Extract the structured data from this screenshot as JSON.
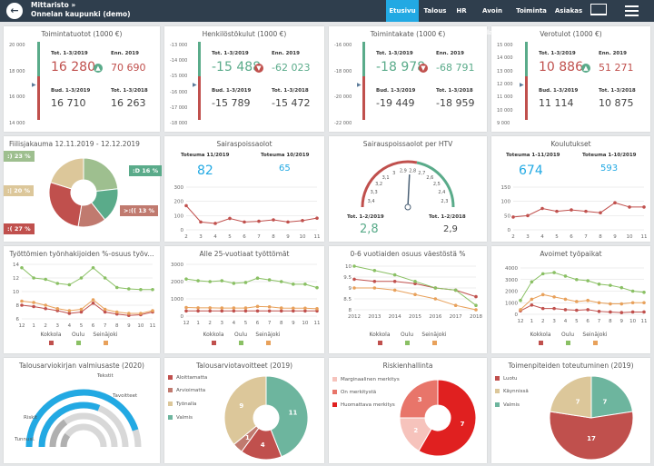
{
  "header": {
    "breadcrumb": "Mittaristo »",
    "title": "Onnelan kaupunki (demo)",
    "tabs": [
      "Etusivu",
      "Talous",
      "HR",
      "Avoin data",
      "Toiminta",
      "Asiakas"
    ],
    "active_tab": "Etusivu"
  },
  "kpis": [
    {
      "title": "Toimintatuotot (1000 €)",
      "axis": [
        "20 000",
        "18 000",
        "16 000",
        "14 000"
      ],
      "tot_label": "Tot. 1-3/2019",
      "tot_value": "16 280",
      "tot_color": "#c0504d",
      "ind": "up",
      "ind_color": "#5aab8a",
      "enn_label": "Enn. 2019",
      "enn_value": "70 690",
      "enn_color": "#c0504d",
      "bud_label": "Bud. 1-3/2019",
      "bud_value": "16 710",
      "prev_label": "Tot. 1-3/2018",
      "prev_value": "16 263"
    },
    {
      "title": "Henkilöstökulut (1000 €)",
      "axis": [
        "-13 000",
        "-14 000",
        "-15 000",
        "-16 000",
        "-17 000",
        "-18 000"
      ],
      "tot_label": "Tot. 1-3/2019",
      "tot_value": "-15 488",
      "tot_color": "#5aab8a",
      "ind": "down",
      "ind_color": "#c0504d",
      "enn_label": "Enn. 2019",
      "enn_value": "-62 023",
      "enn_color": "#5aab8a",
      "bud_label": "Bud. 1-3/2019",
      "bud_value": "-15 789",
      "prev_label": "Tot. 1-3/2018",
      "prev_value": "-15 472"
    },
    {
      "title": "Toimintakate (1000 €)",
      "axis": [
        "-16 000",
        "-18 000",
        "-20 000",
        "-22 000"
      ],
      "tot_label": "Tot. 1-3/2019",
      "tot_value": "-18 978",
      "tot_color": "#5aab8a",
      "ind": "down",
      "ind_color": "#c0504d",
      "enn_label": "Enn. 2019",
      "enn_value": "-68 791",
      "enn_color": "#5aab8a",
      "bud_label": "Bud. 1-3/2019",
      "bud_value": "-19 449",
      "prev_label": "Tot. 1-3/2018",
      "prev_value": "-18 959"
    },
    {
      "title": "Verotulot (1000 €)",
      "axis": [
        "15 000",
        "14 000",
        "13 000",
        "12 000",
        "11 000",
        "10 000",
        "9 000"
      ],
      "tot_label": "Tot. 1-3/2019",
      "tot_value": "10 886",
      "tot_color": "#c0504d",
      "ind": "up",
      "ind_color": "#5aab8a",
      "enn_label": "Enn. 2019",
      "enn_value": "51 271",
      "enn_color": "#c0504d",
      "bud_label": "Bud. 1-3/2019",
      "bud_value": "11 114",
      "prev_label": "Tot. 1-3/2018",
      "prev_value": "10 875"
    }
  ],
  "mood": {
    "title": "Fiilisjakauma 12.11.2019 - 12.12.2019",
    "bubbles": [
      ":) 23 %",
      ":D 16 %",
      ":| 20 %",
      ">:(( 13 %",
      ":( 27 %"
    ],
    "colors": {
      "c1": "#9ebf8f",
      "c2": "#5aab8a",
      "c3": "#dcc79a",
      "c4": "#c07a6f",
      "c5": "#c0504d"
    }
  },
  "sick": {
    "title": "Sairaspoissaolot",
    "l1": "Toteuma 11/2019",
    "v1": "82",
    "l2": "Toteuma 10/2019",
    "v2": "65"
  },
  "htv": {
    "title": "Sairauspoissaolot per HTV",
    "ticks": [
      "3,4",
      "3,3",
      "3,2",
      "3,1",
      "3",
      "2,9",
      "2,8",
      "2,7",
      "2,6",
      "2,5",
      "2,4",
      "2,3"
    ],
    "l1": "Tot. 1-2/2019",
    "v1": "2,8",
    "l2": "Tot. 1-2/2018",
    "v2": "2,9"
  },
  "train": {
    "title": "Koulutukset",
    "l1": "Toteuma 1-11/2019",
    "v1": "674",
    "l2": "Toteuma 1-10/2019",
    "v2": "593"
  },
  "c1": {
    "title": "Työttömien työnhakijoiden %-osuus työv..."
  },
  "c2": {
    "title": "Alle 25-vuotiaat työttömät"
  },
  "c3": {
    "title": "0-6 vuotiaiden osuus väestöstä %"
  },
  "c4": {
    "title": "Avoimet työpaikat"
  },
  "legend": [
    "Kokkola",
    "Oulu",
    "Seinäjoki"
  ],
  "budget": {
    "title": "Talousarviokirjan valmiusaste (2020)",
    "labels": [
      "Tekstit",
      "Tavoitteet",
      "Riskit",
      "Tunnusl."
    ]
  },
  "goals": {
    "title": "Talousarviotavoitteet (2019)",
    "legend": [
      "Aloittamatta",
      "Arvioimatta",
      "Työnalla",
      "Valmis"
    ],
    "values": [
      "11",
      "4",
      "1",
      "9"
    ]
  },
  "risk": {
    "title": "Riskienhallinta",
    "legend": [
      "Marginaalinen merkitys",
      "On merkitystä",
      "Huomattava merkitys"
    ],
    "values": [
      "7",
      "2",
      "3"
    ]
  },
  "actions": {
    "title": "Toimenpiteiden toteutuminen (2019)",
    "legend": [
      "Luotu",
      "Käynnissä",
      "Valmis"
    ],
    "values": [
      "7",
      "7",
      "17"
    ]
  },
  "chart_data": [
    {
      "type": "line",
      "title": "Sairaspoissaolot",
      "categories": [
        "2",
        "3",
        "4",
        "5",
        "6",
        "7",
        "8",
        "9",
        "10",
        "11"
      ],
      "values": [
        170,
        55,
        45,
        80,
        55,
        60,
        70,
        55,
        65,
        82
      ],
      "ylim": [
        0,
        300
      ]
    },
    {
      "type": "line",
      "title": "Koulutukset",
      "categories": [
        "2",
        "3",
        "4",
        "5",
        "6",
        "7",
        "8",
        "9",
        "10",
        "11"
      ],
      "values": [
        45,
        50,
        75,
        65,
        70,
        65,
        60,
        95,
        80,
        80
      ],
      "ylim": [
        0,
        150
      ]
    },
    {
      "type": "line",
      "title": "Työttömien työnhakijoiden %-osuus työv...",
      "categories": [
        "12",
        "1",
        "2",
        "3",
        "4",
        "5",
        "6",
        "7",
        "8",
        "9",
        "10",
        "11"
      ],
      "series": [
        {
          "name": "Kokkola",
          "values": [
            8,
            7.8,
            7.5,
            7.2,
            6.8,
            7,
            8.3,
            7,
            6.7,
            6.5,
            6.6,
            7
          ]
        },
        {
          "name": "Oulu",
          "values": [
            13.5,
            12,
            11.8,
            11.2,
            11,
            12,
            13.5,
            12,
            10.6,
            10.4,
            10.3,
            10.3
          ]
        },
        {
          "name": "Seinäjoki",
          "values": [
            8.6,
            8.4,
            8,
            7.5,
            7.2,
            7.4,
            8.8,
            7.4,
            7,
            6.8,
            6.8,
            7.2
          ]
        }
      ],
      "ylim": [
        6,
        14
      ]
    },
    {
      "type": "line",
      "title": "Alle 25-vuotiaat työttömät",
      "categories": [
        "12",
        "1",
        "2",
        "3",
        "4",
        "5",
        "6",
        "7",
        "8",
        "9",
        "10",
        "11"
      ],
      "series": [
        {
          "name": "Kokkola",
          "values": [
            300,
            300,
            300,
            300,
            300,
            300,
            300,
            300,
            300,
            300,
            300,
            300
          ]
        },
        {
          "name": "Oulu",
          "values": [
            2150,
            2050,
            2000,
            2050,
            1900,
            1950,
            2200,
            2100,
            2000,
            1850,
            1850,
            1650
          ]
        },
        {
          "name": "Seinäjoki",
          "values": [
            500,
            480,
            480,
            470,
            470,
            470,
            560,
            540,
            470,
            460,
            460,
            430
          ]
        }
      ],
      "ylim": [
        0,
        3000
      ]
    },
    {
      "type": "line",
      "title": "0-6 vuotiaiden osuus väestöstä %",
      "categories": [
        "2012",
        "2013",
        "2014",
        "2015",
        "2016",
        "2017",
        "2018"
      ],
      "series": [
        {
          "name": "Kokkola",
          "values": [
            9.4,
            9.3,
            9.3,
            9.2,
            9,
            8.9,
            8.6
          ]
        },
        {
          "name": "Oulu",
          "values": [
            10,
            9.8,
            9.6,
            9.3,
            9,
            8.9,
            8.2
          ]
        },
        {
          "name": "Seinäjoki",
          "values": [
            9,
            9,
            8.9,
            8.7,
            8.5,
            8.2,
            8
          ]
        }
      ],
      "ylim": [
        8,
        10
      ]
    },
    {
      "type": "line",
      "title": "Avoimet työpaikat",
      "categories": [
        "12",
        "1",
        "2",
        "3",
        "4",
        "5",
        "6",
        "7",
        "8",
        "9",
        "10",
        "11"
      ],
      "series": [
        {
          "name": "Kokkola",
          "values": [
            300,
            800,
            500,
            500,
            400,
            350,
            400,
            250,
            200,
            150,
            200,
            200
          ]
        },
        {
          "name": "Oulu",
          "values": [
            1200,
            2800,
            3500,
            3600,
            3300,
            3000,
            2900,
            2600,
            2500,
            2300,
            2000,
            1900
          ]
        },
        {
          "name": "Seinäjoki",
          "values": [
            400,
            1300,
            1700,
            1500,
            1300,
            1100,
            1200,
            1000,
            900,
            900,
            1000,
            1000
          ]
        }
      ],
      "ylim": [
        0,
        4000
      ]
    }
  ]
}
